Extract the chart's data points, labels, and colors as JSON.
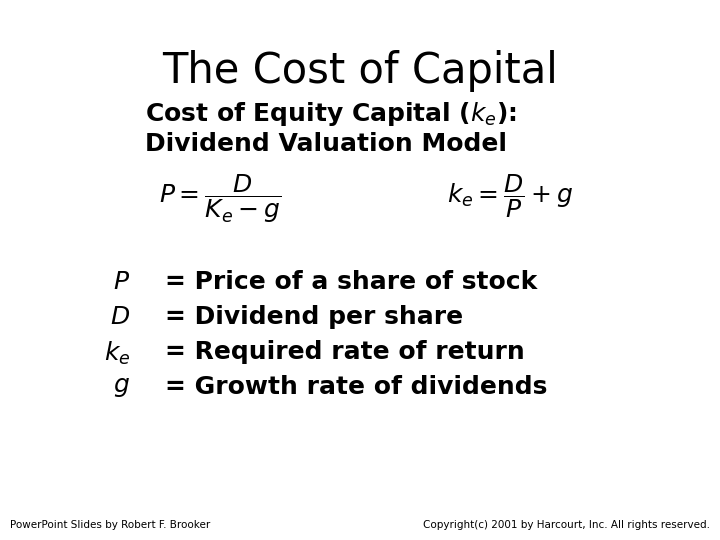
{
  "title": "The Cost of Capital",
  "subtitle1": "Cost of Equity Capital ($k_e$):",
  "subtitle2": "Dividend Valuation Model",
  "formula_left": "$P = \\dfrac{D}{K_e - g}$",
  "formula_right": "$k_e = \\dfrac{D}{P} + g$",
  "footer_left": "PowerPoint Slides by Robert F. Brooker",
  "footer_right": "Copyright(c) 2001 by Harcourt, Inc. All rights reserved.",
  "bg_color": "#ffffff",
  "text_color": "#000000",
  "title_fontsize": 30,
  "subtitle_fontsize": 18,
  "formula_fontsize": 18,
  "def_fontsize": 18,
  "footer_fontsize": 7.5
}
